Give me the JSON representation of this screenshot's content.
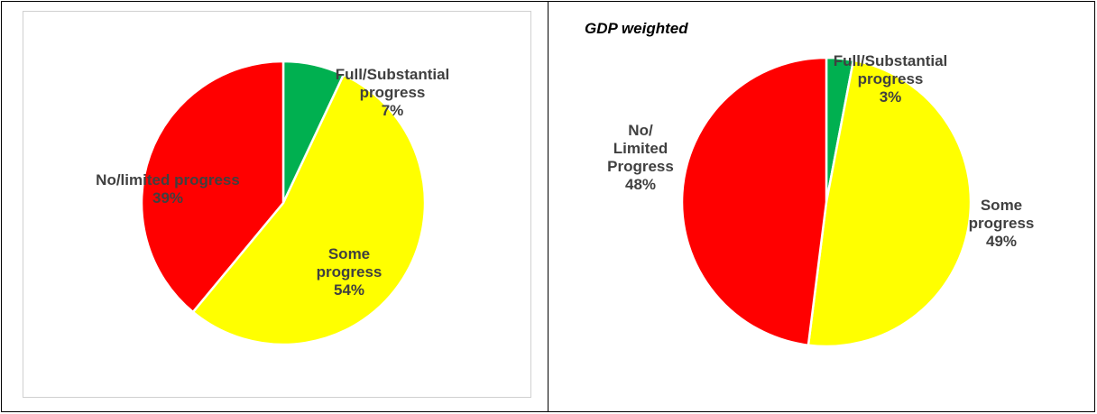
{
  "chart_data": [
    {
      "type": "pie",
      "categories": [
        "Full/Substantial progress",
        "Some progress",
        "No/limited progress"
      ],
      "values": [
        7,
        54,
        39
      ],
      "value_labels": [
        "7%",
        "54%",
        "39%"
      ],
      "colors": [
        "#00b050",
        "#ffff00",
        "#ff0000"
      ]
    },
    {
      "type": "pie",
      "title": "GDP weighted",
      "categories": [
        "Full/Substantial progress",
        "Some progress",
        "No/ Limited Progress"
      ],
      "values": [
        3,
        49,
        48
      ],
      "value_labels": [
        "3%",
        "49%",
        "48%"
      ],
      "colors": [
        "#00b050",
        "#ffff00",
        "#ff0000"
      ]
    }
  ]
}
